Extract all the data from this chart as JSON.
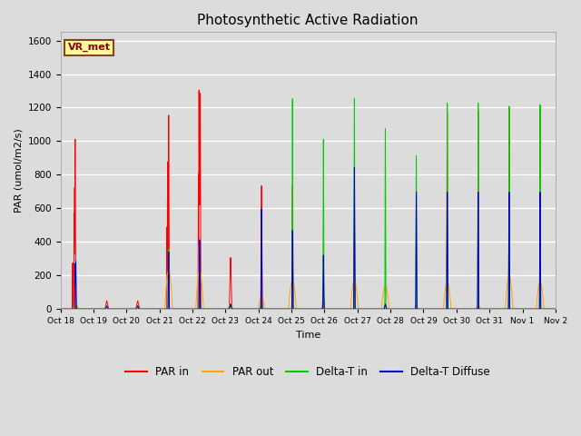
{
  "title": "Photosynthetic Active Radiation",
  "ylabel": "PAR (umol/m2/s)",
  "xlabel": "Time",
  "ylim": [
    0,
    1650
  ],
  "background_color": "#dcdcdc",
  "plot_bg_color": "#dcdcdc",
  "annotation_text": "VR_met",
  "annotation_bg": "#ffff99",
  "annotation_border": "#8B4513",
  "annotation_text_color": "#8B0000",
  "legend_labels": [
    "PAR in",
    "PAR out",
    "Delta-T in",
    "Delta-T Diffuse"
  ],
  "colors": {
    "PAR_in": "#ff0000",
    "PAR_out": "#ffa500",
    "Delta_T_in": "#00cc00",
    "Delta_T_Diffuse": "#0000cc"
  },
  "x_tick_labels": [
    "Oct 18",
    "Oct 19",
    "Oct 20",
    "Oct 21",
    "Oct 22",
    "Oct 23",
    "Oct 24",
    "Oct 25",
    "Oct 26",
    "Oct 27",
    "Oct 28",
    "Oct 29",
    "Oct 30",
    "Oct 31",
    "Nov 1",
    "Nov 2"
  ],
  "x_tick_positions": [
    0,
    24,
    48,
    72,
    96,
    120,
    144,
    168,
    192,
    216,
    240,
    264,
    288,
    312,
    336,
    360
  ]
}
